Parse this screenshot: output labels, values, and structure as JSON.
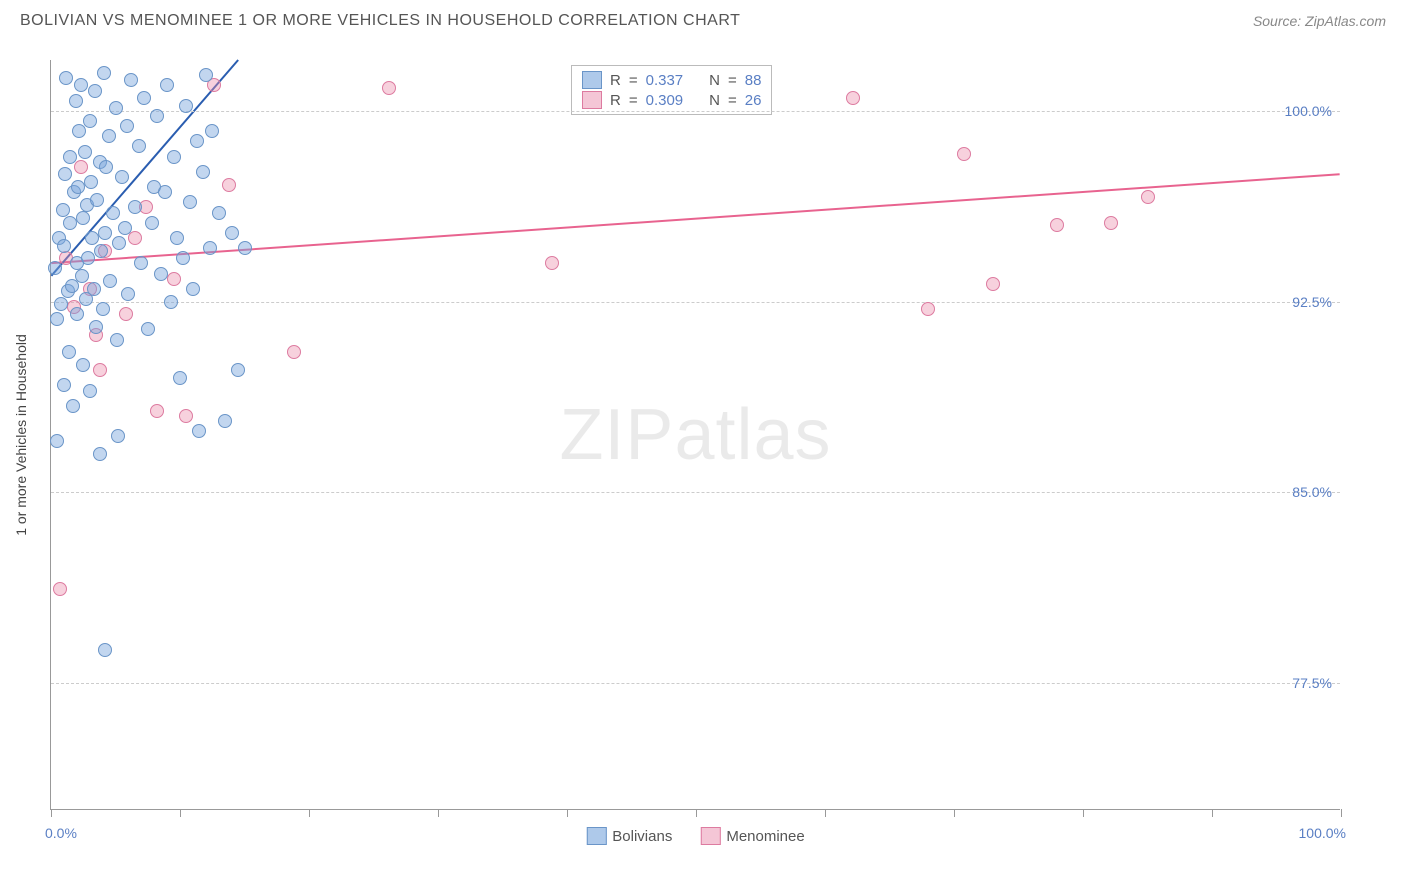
{
  "header": {
    "title": "BOLIVIAN VS MENOMINEE 1 OR MORE VEHICLES IN HOUSEHOLD CORRELATION CHART",
    "source_prefix": "Source: ",
    "source_name": "ZipAtlas.com"
  },
  "watermark": {
    "part1": "ZIP",
    "part2": "atlas"
  },
  "chart": {
    "type": "scatter",
    "background_color": "#ffffff",
    "grid_color": "#cccccc",
    "axis_color": "#999999",
    "ylabel": "1 or more Vehicles in Household",
    "label_color": "#444444",
    "tick_label_color": "#5a7fc4",
    "tick_fontsize": 14,
    "xlim": [
      0,
      100
    ],
    "ylim": [
      72.5,
      102
    ],
    "xticks": [
      0,
      10,
      20,
      30,
      40,
      50,
      60,
      70,
      80,
      90,
      100
    ],
    "yticks": [
      77.5,
      85.0,
      92.5,
      100.0
    ],
    "ytick_labels": [
      "77.5%",
      "85.0%",
      "92.5%",
      "100.0%"
    ],
    "xaxis_min_label": "0.0%",
    "xaxis_max_label": "100.0%"
  },
  "series": {
    "bolivians": {
      "label": "Bolivians",
      "color_fill": "rgba(120,165,220,0.45)",
      "color_stroke": "#6a95c8",
      "swatch_fill": "#aec9ea",
      "swatch_border": "#6a95c8",
      "marker_radius": 7,
      "trend": {
        "x1": 0,
        "y1": 93.5,
        "x2": 14.5,
        "y2": 102,
        "color": "#2a5db0",
        "width": 2
      },
      "R": "0.337",
      "N": "88",
      "points": [
        [
          0.3,
          93.8
        ],
        [
          0.5,
          87.0
        ],
        [
          0.5,
          91.8
        ],
        [
          0.6,
          95.0
        ],
        [
          0.8,
          92.4
        ],
        [
          0.9,
          96.1
        ],
        [
          1.0,
          89.2
        ],
        [
          1.0,
          94.7
        ],
        [
          1.1,
          97.5
        ],
        [
          1.2,
          101.3
        ],
        [
          1.3,
          92.9
        ],
        [
          1.4,
          90.5
        ],
        [
          1.5,
          98.2
        ],
        [
          1.5,
          95.6
        ],
        [
          1.6,
          93.1
        ],
        [
          1.7,
          88.4
        ],
        [
          1.8,
          96.8
        ],
        [
          1.9,
          100.4
        ],
        [
          2.0,
          94.0
        ],
        [
          2.0,
          92.0
        ],
        [
          2.1,
          97.0
        ],
        [
          2.2,
          99.2
        ],
        [
          2.3,
          101.0
        ],
        [
          2.4,
          93.5
        ],
        [
          2.5,
          90.0
        ],
        [
          2.5,
          95.8
        ],
        [
          2.6,
          98.4
        ],
        [
          2.7,
          92.6
        ],
        [
          2.8,
          96.3
        ],
        [
          2.9,
          94.2
        ],
        [
          3.0,
          99.6
        ],
        [
          3.0,
          89.0
        ],
        [
          3.1,
          97.2
        ],
        [
          3.2,
          95.0
        ],
        [
          3.3,
          93.0
        ],
        [
          3.4,
          100.8
        ],
        [
          3.5,
          91.5
        ],
        [
          3.6,
          96.5
        ],
        [
          3.8,
          98.0
        ],
        [
          3.9,
          94.5
        ],
        [
          4.0,
          92.2
        ],
        [
          4.1,
          101.5
        ],
        [
          4.2,
          95.2
        ],
        [
          4.3,
          97.8
        ],
        [
          4.5,
          99.0
        ],
        [
          4.6,
          93.3
        ],
        [
          4.8,
          96.0
        ],
        [
          5.0,
          100.1
        ],
        [
          5.1,
          91.0
        ],
        [
          5.3,
          94.8
        ],
        [
          5.5,
          97.4
        ],
        [
          5.7,
          95.4
        ],
        [
          5.9,
          99.4
        ],
        [
          6.0,
          92.8
        ],
        [
          6.2,
          101.2
        ],
        [
          6.5,
          96.2
        ],
        [
          6.8,
          98.6
        ],
        [
          7.0,
          94.0
        ],
        [
          7.2,
          100.5
        ],
        [
          7.5,
          91.4
        ],
        [
          7.8,
          95.6
        ],
        [
          8.0,
          97.0
        ],
        [
          8.2,
          99.8
        ],
        [
          8.5,
          93.6
        ],
        [
          8.8,
          96.8
        ],
        [
          9.0,
          101.0
        ],
        [
          9.3,
          92.5
        ],
        [
          9.5,
          98.2
        ],
        [
          9.8,
          95.0
        ],
        [
          10.0,
          89.5
        ],
        [
          10.2,
          94.2
        ],
        [
          10.5,
          100.2
        ],
        [
          10.8,
          96.4
        ],
        [
          11.0,
          93.0
        ],
        [
          11.3,
          98.8
        ],
        [
          11.5,
          87.4
        ],
        [
          11.8,
          97.6
        ],
        [
          12.0,
          101.4
        ],
        [
          12.3,
          94.6
        ],
        [
          12.5,
          99.2
        ],
        [
          13.0,
          96.0
        ],
        [
          13.5,
          87.8
        ],
        [
          14.0,
          95.2
        ],
        [
          14.5,
          89.8
        ],
        [
          15.0,
          94.6
        ],
        [
          4.2,
          78.8
        ],
        [
          3.8,
          86.5
        ],
        [
          5.2,
          87.2
        ]
      ]
    },
    "menominee": {
      "label": "Menominee",
      "color_fill": "rgba(235,140,170,0.4)",
      "color_stroke": "#dd7ba0",
      "swatch_fill": "#f4c6d6",
      "swatch_border": "#dd7ba0",
      "marker_radius": 7,
      "trend": {
        "x1": 0,
        "y1": 94,
        "x2": 100,
        "y2": 97.5,
        "color": "#e8638f",
        "width": 2
      },
      "R": "0.309",
      "N": "26",
      "points": [
        [
          0.7,
          81.2
        ],
        [
          1.2,
          94.2
        ],
        [
          1.8,
          92.3
        ],
        [
          2.3,
          97.8
        ],
        [
          3.0,
          93.0
        ],
        [
          3.5,
          91.2
        ],
        [
          4.2,
          94.5
        ],
        [
          5.8,
          92.0
        ],
        [
          7.4,
          96.2
        ],
        [
          8.2,
          88.2
        ],
        [
          9.5,
          93.4
        ],
        [
          10.5,
          88.0
        ],
        [
          12.6,
          101.0
        ],
        [
          13.8,
          97.1
        ],
        [
          18.8,
          90.5
        ],
        [
          26.2,
          100.9
        ],
        [
          38.8,
          94.0
        ],
        [
          62.2,
          100.5
        ],
        [
          68.0,
          92.2
        ],
        [
          70.8,
          98.3
        ],
        [
          73.0,
          93.2
        ],
        [
          78.0,
          95.5
        ],
        [
          82.2,
          95.6
        ],
        [
          85.0,
          96.6
        ],
        [
          3.8,
          89.8
        ],
        [
          6.5,
          95.0
        ]
      ]
    }
  },
  "stats_legend": {
    "prefix_R": "R",
    "prefix_N": "N",
    "equals": "="
  }
}
